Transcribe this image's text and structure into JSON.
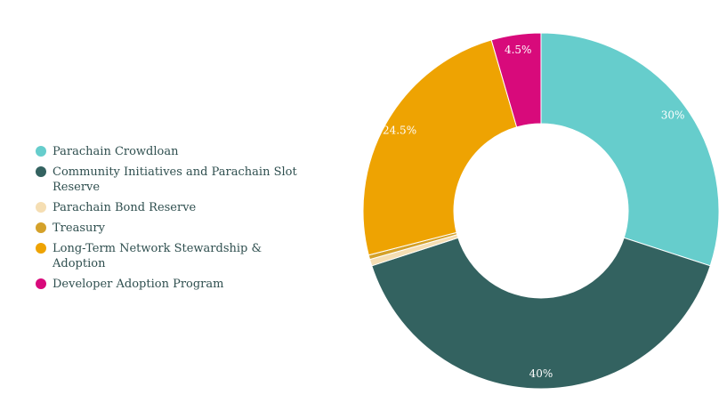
{
  "chart_data": {
    "type": "pie",
    "variant": "donut",
    "categories": [
      "Parachain Crowdloan",
      "Community Initiatives and Parachain Slot Reserve",
      "Parachain Bond Reserve",
      "Treasury",
      "Long-Term Network Stewardship & Adoption",
      "Developer Adoption Program"
    ],
    "values": [
      30,
      40,
      0.6,
      0.4,
      24.5,
      4.5
    ],
    "labels": [
      "30%",
      "40%",
      "",
      "",
      "24.5%",
      "4.5%"
    ],
    "colors": [
      "#66cdcc",
      "#336260",
      "#f5deb3",
      "#d4a12a",
      "#eea302",
      "#d80a7b"
    ],
    "legend_position": "left",
    "title": ""
  }
}
